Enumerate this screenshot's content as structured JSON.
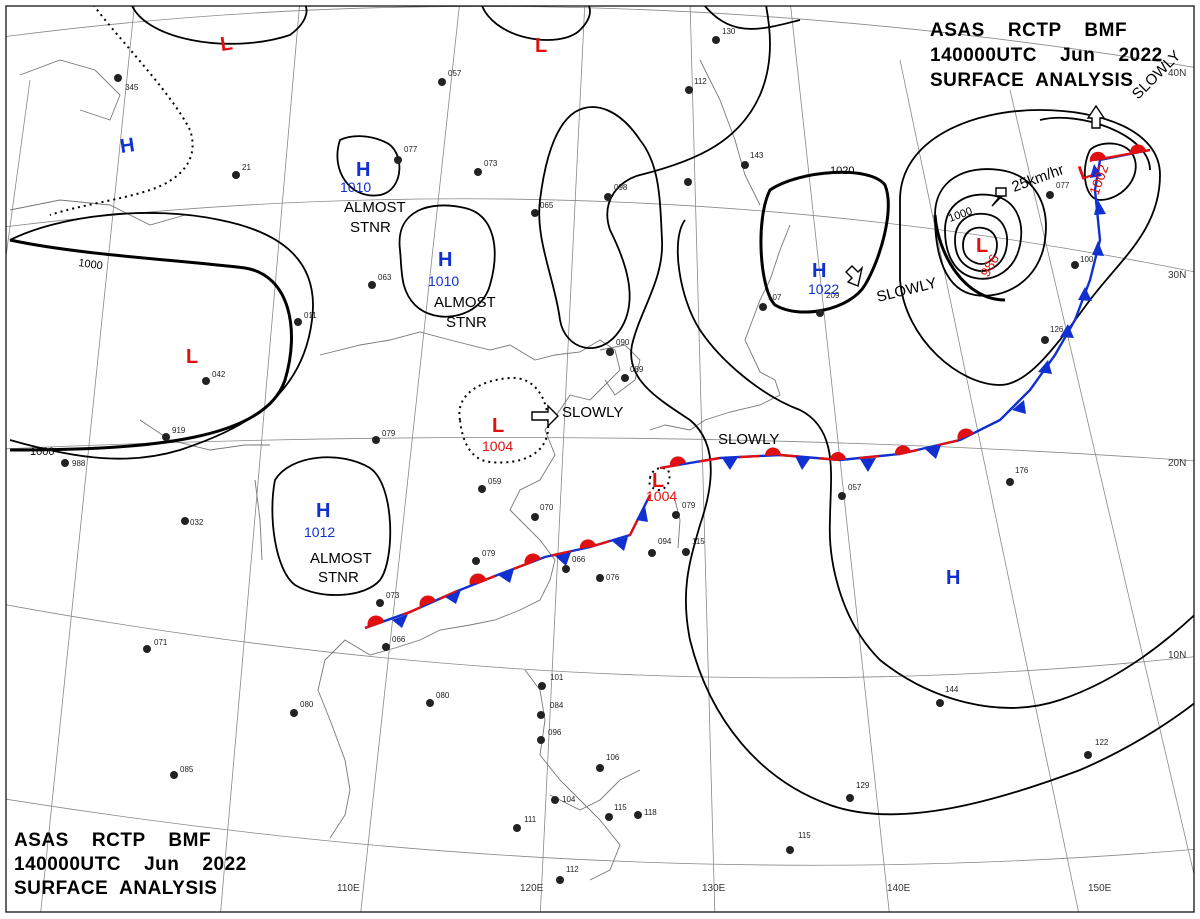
{
  "header_top": {
    "line1": "ASAS    RCTP    BMF",
    "line2": "140000UTC    Jun    2022",
    "line3": "SURFACE  ANALYSIS"
  },
  "header_bottom": {
    "line1": "ASAS    RCTP    BMF",
    "line2": "140000UTC    Jun    2022",
    "line3": "SURFACE  ANALYSIS"
  },
  "lon_labels": [
    "110E",
    "120E",
    "130E",
    "140E",
    "150E"
  ],
  "lat_labels": [
    "40N",
    "30N",
    "20N",
    "10N"
  ],
  "isobar_labels": [
    "1000",
    "1000",
    "1020",
    "1000"
  ],
  "pressure_systems": [
    {
      "type": "L",
      "value": ""
    },
    {
      "type": "L",
      "value": ""
    },
    {
      "type": "H",
      "value": ""
    },
    {
      "type": "H",
      "value": "1010",
      "note1": "ALMOST",
      "note2": "STNR"
    },
    {
      "type": "H",
      "value": "1010",
      "note1": "ALMOST",
      "note2": "STNR"
    },
    {
      "type": "L",
      "value": ""
    },
    {
      "type": "L",
      "value": "1004",
      "note1": "SLOWLY"
    },
    {
      "type": "H",
      "value": "1012",
      "note1": "ALMOST",
      "note2": "STNR"
    },
    {
      "type": "L",
      "value": "1004",
      "note1": "SLOWLY"
    },
    {
      "type": "H",
      "value": "1022",
      "note1": "SLOWLY"
    },
    {
      "type": "L",
      "value": "986",
      "note1": "25km/hr"
    },
    {
      "type": "L",
      "value": "1002",
      "note1": "SLOWLY"
    },
    {
      "type": "H",
      "value": ""
    }
  ],
  "colors": {
    "low": "#e01010",
    "high": "#1030d0",
    "front_warm": "#e01010",
    "front_cold": "#1030d0"
  }
}
